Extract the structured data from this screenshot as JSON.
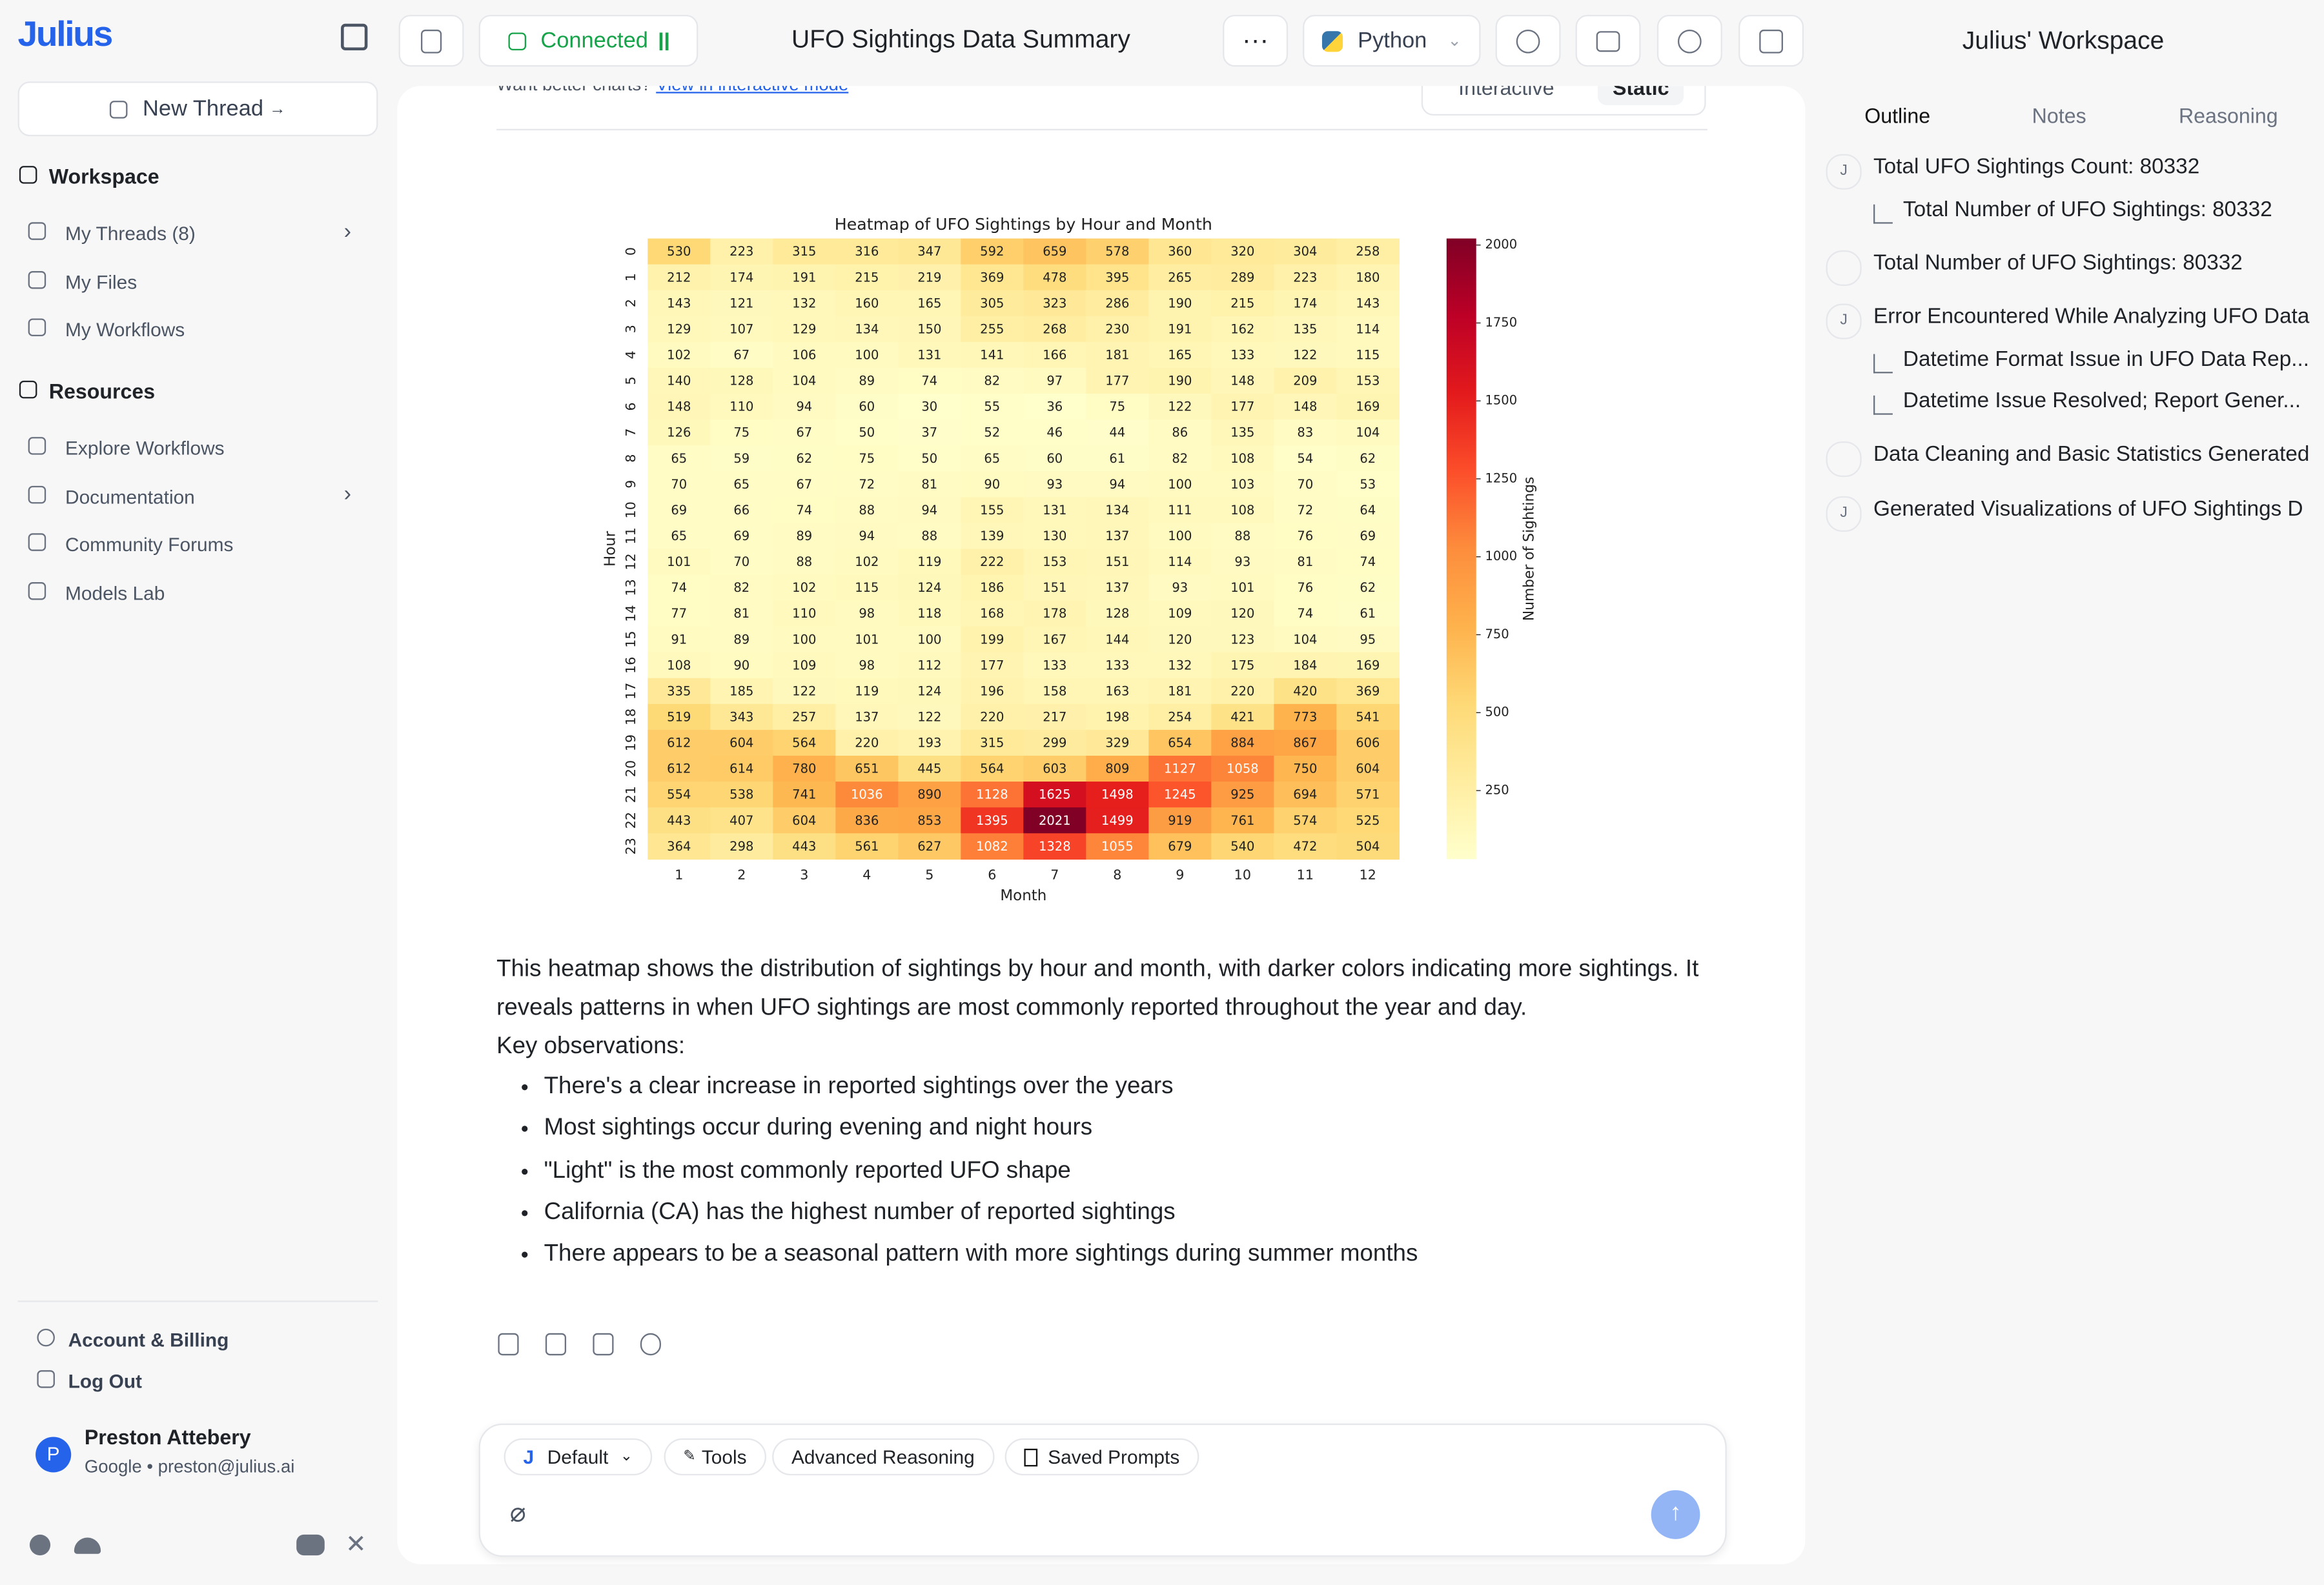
{
  "sidebar": {
    "logo": "Julius",
    "new_thread": "New Thread",
    "workspace": "Workspace",
    "workspace_items": [
      "My Threads (8)",
      "My Files",
      "My Workflows"
    ],
    "resources": "Resources",
    "resource_items": [
      "Explore Workflows",
      "Documentation",
      "Community Forums",
      "Models Lab"
    ],
    "account": "Account & Billing",
    "logout": "Log Out",
    "user": {
      "initial": "P",
      "name": "Preston Attebery",
      "detail": "Google • preston@julius.ai"
    }
  },
  "header": {
    "status": "Connected",
    "title": "UFO Sightings Data Summary",
    "language": "Python"
  },
  "workspace": {
    "title": "Julius' Workspace",
    "tabs": [
      "Outline",
      "Notes",
      "Reasoning"
    ],
    "outline": [
      {
        "icon": "J",
        "text": "Total UFO Sightings Count: 80332",
        "level": 0
      },
      {
        "icon": "",
        "text": "Total Number of UFO Sightings: 80332",
        "level": 1
      },
      {
        "icon": "",
        "text": "Total Number of UFO Sightings: 80332",
        "level": 0
      },
      {
        "icon": "J",
        "text": "Error Encountered While Analyzing UFO Data",
        "level": 0
      },
      {
        "icon": "",
        "text": "Datetime Format Issue in UFO Data Rep...",
        "level": 1
      },
      {
        "icon": "",
        "text": "Datetime Issue Resolved; Report Gener...",
        "level": 1
      },
      {
        "icon": "",
        "text": "Data Cleaning and Basic Statistics Generated",
        "level": 0
      },
      {
        "icon": "J",
        "text": "Generated Visualizations of UFO Sightings D",
        "level": 0
      }
    ]
  },
  "message": {
    "hint": "Want better charts?",
    "hint_link": "View in interactive mode",
    "toggle": [
      "Interactive",
      "Static"
    ],
    "paragraph": "This heatmap shows the distribution of sightings by hour and month, with darker colors indicating more sightings. It reveals patterns in when UFO sightings are most commonly reported throughout the year and day.",
    "observations": "Key observations:",
    "bullets": [
      "There's a clear increase in reported sightings over the years",
      "Most sightings occur during evening and night hours",
      "\"Light\" is the most commonly reported UFO shape",
      "California (CA) has the highest number of reported sightings",
      "There appears to be a seasonal pattern with more sightings during summer months"
    ]
  },
  "input": {
    "model_icon": "J",
    "model": "Default",
    "buttons": [
      "Tools",
      "Advanced Reasoning",
      "Saved Prompts"
    ]
  },
  "chart_data": {
    "type": "heatmap",
    "title": "Heatmap of UFO Sightings by Hour and Month",
    "xlabel": "Month",
    "ylabel": "Hour",
    "colorbar_label": "Number of Sightings",
    "x": [
      1,
      2,
      3,
      4,
      5,
      6,
      7,
      8,
      9,
      10,
      11,
      12
    ],
    "y": [
      0,
      1,
      2,
      3,
      4,
      5,
      6,
      7,
      8,
      9,
      10,
      11,
      12,
      13,
      14,
      15,
      16,
      17,
      18,
      19,
      20,
      21,
      22,
      23
    ],
    "values": [
      [
        530,
        223,
        315,
        316,
        347,
        592,
        659,
        578,
        360,
        320,
        304,
        258
      ],
      [
        212,
        174,
        191,
        215,
        219,
        369,
        478,
        395,
        265,
        289,
        223,
        180
      ],
      [
        143,
        121,
        132,
        160,
        165,
        305,
        323,
        286,
        190,
        215,
        174,
        143
      ],
      [
        129,
        107,
        129,
        134,
        150,
        255,
        268,
        230,
        191,
        162,
        135,
        114
      ],
      [
        102,
        67,
        106,
        100,
        131,
        141,
        166,
        181,
        165,
        133,
        122,
        115
      ],
      [
        140,
        128,
        104,
        89,
        74,
        82,
        97,
        177,
        190,
        148,
        209,
        153
      ],
      [
        148,
        110,
        94,
        60,
        30,
        55,
        36,
        75,
        122,
        177,
        148,
        169
      ],
      [
        126,
        75,
        67,
        50,
        37,
        52,
        46,
        44,
        86,
        135,
        83,
        104
      ],
      [
        65,
        59,
        62,
        75,
        50,
        65,
        60,
        61,
        82,
        108,
        54,
        62
      ],
      [
        70,
        65,
        67,
        72,
        81,
        90,
        93,
        94,
        100,
        103,
        70,
        53
      ],
      [
        69,
        66,
        74,
        88,
        94,
        155,
        131,
        134,
        111,
        108,
        72,
        64
      ],
      [
        65,
        69,
        89,
        94,
        88,
        139,
        130,
        137,
        100,
        88,
        76,
        69
      ],
      [
        101,
        70,
        88,
        102,
        119,
        222,
        153,
        151,
        114,
        93,
        81,
        74
      ],
      [
        74,
        82,
        102,
        115,
        124,
        186,
        151,
        137,
        93,
        101,
        76,
        62
      ],
      [
        77,
        81,
        110,
        98,
        118,
        168,
        178,
        128,
        109,
        120,
        74,
        61
      ],
      [
        91,
        89,
        100,
        101,
        100,
        199,
        167,
        144,
        120,
        123,
        104,
        95
      ],
      [
        108,
        90,
        109,
        98,
        112,
        177,
        133,
        133,
        132,
        175,
        184,
        169
      ],
      [
        335,
        185,
        122,
        119,
        124,
        196,
        158,
        163,
        181,
        220,
        420,
        369
      ],
      [
        519,
        343,
        257,
        137,
        122,
        220,
        217,
        198,
        254,
        421,
        773,
        541
      ],
      [
        612,
        604,
        564,
        220,
        193,
        315,
        299,
        329,
        654,
        884,
        867,
        606
      ],
      [
        612,
        614,
        780,
        651,
        445,
        564,
        603,
        809,
        1127,
        1058,
        750,
        604
      ],
      [
        554,
        538,
        741,
        1036,
        890,
        1128,
        1625,
        1498,
        1245,
        925,
        694,
        571
      ],
      [
        443,
        407,
        604,
        836,
        853,
        1395,
        2021,
        1499,
        919,
        761,
        574,
        525
      ],
      [
        364,
        298,
        443,
        561,
        627,
        1082,
        1328,
        1055,
        679,
        540,
        472,
        504
      ]
    ],
    "zlim": [
      30,
      2021
    ],
    "zticks": [
      250,
      500,
      750,
      1000,
      1250,
      1500,
      1750,
      2000
    ],
    "colorscale": [
      "#ffffcc",
      "#ffeda0",
      "#fed976",
      "#feb24c",
      "#fd8d3c",
      "#fc4e2a",
      "#e31a1c",
      "#bd0026",
      "#800026"
    ]
  }
}
